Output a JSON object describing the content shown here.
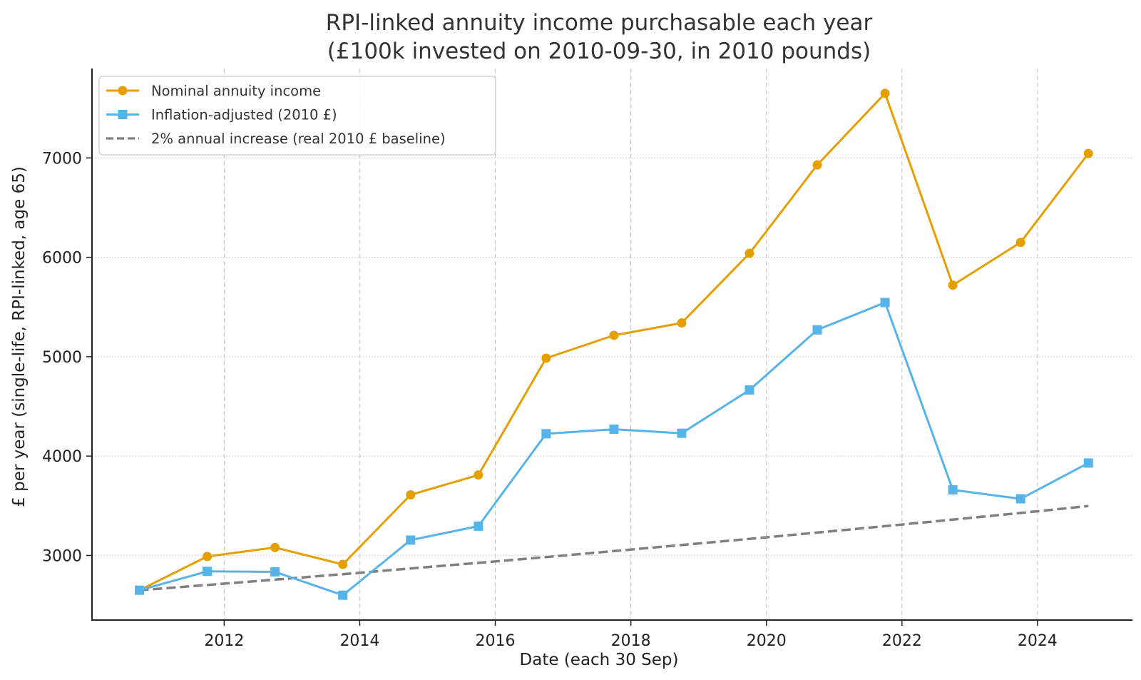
{
  "chart_data": {
    "type": "line",
    "title": "RPI-linked annuity income purchasable each year",
    "subtitle": "(£100k invested on 2010-09-30, in 2010 pounds)",
    "xlabel": "Date (each 30 Sep)",
    "ylabel": "£ per year (single-life, RPI-linked, age 65)",
    "x": [
      2010.75,
      2011.75,
      2012.75,
      2013.75,
      2014.75,
      2015.75,
      2016.75,
      2017.75,
      2018.75,
      2019.75,
      2020.75,
      2021.75,
      2022.75,
      2023.75,
      2024.75
    ],
    "x_labels": [
      "2010-09-30",
      "2011-09-30",
      "2012-09-30",
      "2013-09-30",
      "2014-09-30",
      "2015-09-30",
      "2016-09-30",
      "2017-09-30",
      "2018-09-30",
      "2019-09-30",
      "2020-09-30",
      "2021-09-30",
      "2022-09-30",
      "2023-09-30",
      "2024-09-30"
    ],
    "xlim": [
      2010.05,
      2025.4
    ],
    "ylim": [
      2350,
      7900
    ],
    "x_ticks": [
      2012,
      2014,
      2016,
      2018,
      2020,
      2022,
      2024
    ],
    "x_tick_labels": [
      "2012",
      "2014",
      "2016",
      "2018",
      "2020",
      "2022",
      "2024"
    ],
    "y_ticks": [
      3000,
      4000,
      5000,
      6000,
      7000
    ],
    "y_tick_labels": [
      "3000",
      "4000",
      "5000",
      "6000",
      "7000"
    ],
    "grid": {
      "x": "dashed",
      "y": "dotted"
    },
    "legend_position": "top-left",
    "series": [
      {
        "name": "Nominal annuity income",
        "color": "#E69F00",
        "marker": "circle",
        "line_style": "solid",
        "values": [
          2650,
          2990,
          3080,
          2910,
          3610,
          3810,
          4985,
          5215,
          5340,
          6040,
          6930,
          7650,
          5720,
          6150,
          7045
        ]
      },
      {
        "name": "Inflation-adjusted (2010 £)",
        "color": "#56B4E9",
        "marker": "square",
        "line_style": "solid",
        "values": [
          2650,
          2840,
          2835,
          2600,
          3155,
          3295,
          4225,
          4270,
          4230,
          4665,
          5270,
          5545,
          3660,
          3570,
          3930
        ]
      },
      {
        "name": "2% annual increase (real 2010 £ baseline)",
        "color": "#808080",
        "marker": "none",
        "line_style": "dashed",
        "values": [
          2650,
          2703,
          2757,
          2812,
          2869,
          2926,
          2984,
          3044,
          3105,
          3167,
          3230,
          3295,
          3361,
          3428,
          3497
        ]
      }
    ]
  }
}
